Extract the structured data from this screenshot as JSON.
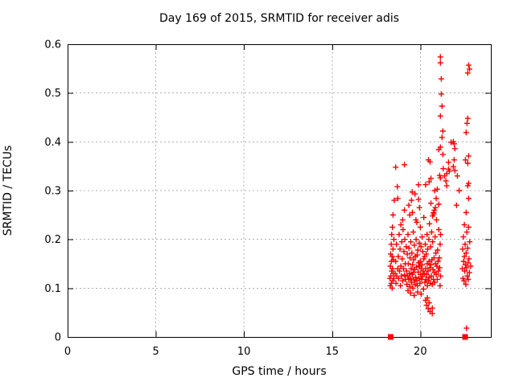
{
  "chart_data": {
    "type": "scatter",
    "title": "Day 169 of 2015, SRMTID for receiver adis",
    "xlabel": "GPS time / hours",
    "ylabel": "SRMTID / TECUs",
    "xlim": [
      0,
      24
    ],
    "ylim": [
      0,
      0.6
    ],
    "x_ticks": [
      0,
      5,
      10,
      15,
      20
    ],
    "x_tick_labels": [
      "0",
      "5",
      "10",
      "15",
      "20"
    ],
    "y_ticks": [
      0,
      0.1,
      0.2,
      0.3,
      0.4,
      0.5,
      0.6
    ],
    "y_tick_labels": [
      "0",
      "0.1",
      "0.2",
      "0.3",
      "0.4",
      "0.5",
      "0.6"
    ],
    "grid": true,
    "legend": "none",
    "marker": "plus",
    "marker_color": "#ff0000",
    "grid_color": "#b0b0b0",
    "axis_color": "#000000",
    "background": "#ffffff",
    "square_points": [
      [
        18.32,
        0
      ],
      [
        22.54,
        0
      ]
    ],
    "points": [
      [
        18.28,
        0.12
      ],
      [
        18.3,
        0.145
      ],
      [
        18.3,
        0.105
      ],
      [
        18.32,
        0.17
      ],
      [
        18.33,
        0.125
      ],
      [
        18.35,
        0.19
      ],
      [
        18.35,
        0.11
      ],
      [
        18.36,
        0.155
      ],
      [
        18.38,
        0.135
      ],
      [
        18.38,
        0.21
      ],
      [
        18.4,
        0.1
      ],
      [
        18.4,
        0.165
      ],
      [
        18.42,
        0.14
      ],
      [
        18.42,
        0.225
      ],
      [
        18.44,
        0.115
      ],
      [
        18.45,
        0.18
      ],
      [
        18.45,
        0.25
      ],
      [
        18.46,
        0.13
      ],
      [
        18.48,
        0.158
      ],
      [
        18.5,
        0.12
      ],
      [
        18.5,
        0.2
      ],
      [
        18.52,
        0.28
      ],
      [
        18.57,
        0.13
      ],
      [
        18.6,
        0.155
      ],
      [
        18.6,
        0.348
      ],
      [
        18.62,
        0.11
      ],
      [
        18.65,
        0.19
      ],
      [
        18.66,
        0.125
      ],
      [
        18.7,
        0.308
      ],
      [
        18.72,
        0.284
      ],
      [
        18.72,
        0.14
      ],
      [
        18.75,
        0.165
      ],
      [
        18.77,
        0.12
      ],
      [
        18.8,
        0.21
      ],
      [
        18.82,
        0.135
      ],
      [
        18.85,
        0.18
      ],
      [
        18.87,
        0.105
      ],
      [
        18.9,
        0.23
      ],
      [
        18.9,
        0.145
      ],
      [
        18.93,
        0.125
      ],
      [
        18.95,
        0.195
      ],
      [
        18.97,
        0.16
      ],
      [
        19.0,
        0.115
      ],
      [
        19.02,
        0.22
      ],
      [
        19.05,
        0.14
      ],
      [
        19.07,
        0.175
      ],
      [
        19.1,
        0.353
      ],
      [
        19.1,
        0.26
      ],
      [
        19.1,
        0.127
      ],
      [
        19.12,
        0.2
      ],
      [
        19.15,
        0.15
      ],
      [
        19.17,
        0.118
      ],
      [
        19.2,
        0.185
      ],
      [
        19.0,
        0.24
      ],
      [
        19.22,
        0.135
      ],
      [
        19.24,
        0.108
      ],
      [
        19.26,
        0.17
      ],
      [
        19.28,
        0.125
      ],
      [
        19.3,
        0.095
      ],
      [
        19.3,
        0.21
      ],
      [
        19.32,
        0.15
      ],
      [
        19.34,
        0.118
      ],
      [
        19.36,
        0.182
      ],
      [
        19.38,
        0.13
      ],
      [
        19.4,
        0.103
      ],
      [
        19.4,
        0.25
      ],
      [
        19.42,
        0.162
      ],
      [
        19.44,
        0.12
      ],
      [
        19.46,
        0.195
      ],
      [
        19.48,
        0.14
      ],
      [
        19.5,
        0.112
      ],
      [
        19.5,
        0.28
      ],
      [
        19.52,
        0.172
      ],
      [
        19.54,
        0.297
      ],
      [
        19.54,
        0.128
      ],
      [
        19.56,
        0.148
      ],
      [
        19.58,
        0.1
      ],
      [
        19.6,
        0.215
      ],
      [
        19.6,
        0.132
      ],
      [
        19.62,
        0.158
      ],
      [
        19.64,
        0.117
      ],
      [
        19.66,
        0.188
      ],
      [
        19.68,
        0.138
      ],
      [
        19.7,
        0.293
      ],
      [
        19.7,
        0.108
      ],
      [
        19.72,
        0.165
      ],
      [
        19.74,
        0.122
      ],
      [
        19.76,
        0.2
      ],
      [
        19.78,
        0.143
      ],
      [
        19.8,
        0.115
      ],
      [
        19.8,
        0.235
      ],
      [
        19.82,
        0.168
      ],
      [
        19.84,
        0.105
      ],
      [
        19.86,
        0.178
      ],
      [
        19.88,
        0.133
      ],
      [
        19.9,
        0.312
      ],
      [
        19.9,
        0.282
      ],
      [
        19.9,
        0.152
      ],
      [
        19.92,
        0.12
      ],
      [
        19.94,
        0.192
      ],
      [
        19.96,
        0.145
      ],
      [
        19.98,
        0.11
      ],
      [
        20.0,
        0.225
      ],
      [
        20.0,
        0.155
      ],
      [
        20.02,
        0.128
      ],
      [
        20.04,
        0.185
      ],
      [
        20.06,
        0.14
      ],
      [
        20.08,
        0.118
      ],
      [
        20.1,
        0.205
      ],
      [
        20.1,
        0.148
      ],
      [
        20.12,
        0.124
      ],
      [
        20.14,
        0.175
      ],
      [
        20.16,
        0.135
      ],
      [
        20.18,
        0.098
      ],
      [
        20.2,
        0.16
      ],
      [
        20.2,
        0.245
      ],
      [
        19.45,
        0.09
      ],
      [
        19.65,
        0.085
      ],
      [
        19.85,
        0.092
      ],
      [
        20.05,
        0.088
      ],
      [
        19.35,
        0.27
      ],
      [
        19.55,
        0.255
      ],
      [
        19.75,
        0.24
      ],
      [
        19.95,
        0.265
      ],
      [
        20.3,
        0.075
      ],
      [
        20.35,
        0.065
      ],
      [
        20.4,
        0.08
      ],
      [
        20.45,
        0.058
      ],
      [
        20.5,
        0.07
      ],
      [
        20.55,
        0.052
      ],
      [
        20.68,
        0.059
      ],
      [
        20.68,
        0.048
      ],
      [
        20.22,
        0.13
      ],
      [
        20.24,
        0.165
      ],
      [
        20.26,
        0.112
      ],
      [
        20.28,
        0.19
      ],
      [
        20.3,
        0.14
      ],
      [
        20.3,
        0.312
      ],
      [
        20.32,
        0.118
      ],
      [
        20.34,
        0.17
      ],
      [
        20.36,
        0.128
      ],
      [
        20.38,
        0.21
      ],
      [
        20.4,
        0.15
      ],
      [
        20.4,
        0.105
      ],
      [
        20.42,
        0.18
      ],
      [
        20.44,
        0.135
      ],
      [
        20.46,
        0.115
      ],
      [
        20.46,
        0.363
      ],
      [
        20.48,
        0.2
      ],
      [
        20.5,
        0.155
      ],
      [
        20.5,
        0.318
      ],
      [
        20.5,
        0.122
      ],
      [
        20.52,
        0.232
      ],
      [
        20.54,
        0.142
      ],
      [
        20.55,
        0.359
      ],
      [
        20.56,
        0.11
      ],
      [
        20.58,
        0.185
      ],
      [
        20.6,
        0.274
      ],
      [
        20.6,
        0.325
      ],
      [
        20.6,
        0.148
      ],
      [
        20.62,
        0.125
      ],
      [
        20.64,
        0.215
      ],
      [
        20.66,
        0.158
      ],
      [
        20.68,
        0.108
      ],
      [
        20.7,
        0.248
      ],
      [
        20.7,
        0.195
      ],
      [
        20.72,
        0.138
      ],
      [
        20.74,
        0.118
      ],
      [
        20.75,
        0.255
      ],
      [
        20.76,
        0.252
      ],
      [
        20.78,
        0.162
      ],
      [
        20.8,
        0.26
      ],
      [
        20.8,
        0.132
      ],
      [
        20.82,
        0.3
      ],
      [
        20.82,
        0.112
      ],
      [
        20.84,
        0.205
      ],
      [
        20.85,
        0.265
      ],
      [
        20.86,
        0.15
      ],
      [
        20.88,
        0.172
      ],
      [
        20.9,
        0.284
      ],
      [
        20.9,
        0.128
      ],
      [
        20.92,
        0.24
      ],
      [
        20.94,
        0.145
      ],
      [
        20.96,
        0.303
      ],
      [
        20.96,
        0.118
      ],
      [
        20.98,
        0.178
      ],
      [
        21.0,
        0.155
      ],
      [
        21.02,
        0.135
      ],
      [
        21.05,
        0.272
      ],
      [
        21.05,
        0.22
      ],
      [
        21.08,
        0.162
      ],
      [
        21.1,
        0.331
      ],
      [
        21.1,
        0.142
      ],
      [
        21.12,
        0.19
      ],
      [
        21.14,
        0.326
      ],
      [
        21.15,
        0.125
      ],
      [
        21.15,
        0.21
      ],
      [
        21.12,
        0.105
      ],
      [
        21.05,
        0.384
      ],
      [
        21.14,
        0.389
      ],
      [
        21.28,
        0.374
      ],
      [
        21.3,
        0.345
      ],
      [
        21.37,
        0.33
      ],
      [
        21.5,
        0.335
      ],
      [
        21.6,
        0.358
      ],
      [
        21.6,
        0.344
      ],
      [
        21.65,
        0.34
      ],
      [
        21.74,
        0.399
      ],
      [
        21.87,
        0.349
      ],
      [
        21.87,
        0.4
      ],
      [
        21.92,
        0.396
      ],
      [
        21.92,
        0.363
      ],
      [
        21.96,
        0.341
      ],
      [
        21.96,
        0.386
      ],
      [
        21.5,
        0.31
      ],
      [
        21.45,
        0.32
      ],
      [
        21.14,
        0.574
      ],
      [
        21.14,
        0.562
      ],
      [
        21.19,
        0.529
      ],
      [
        21.19,
        0.498
      ],
      [
        21.23,
        0.473
      ],
      [
        21.14,
        0.453
      ],
      [
        21.28,
        0.422
      ],
      [
        21.23,
        0.409
      ],
      [
        22.05,
        0.27
      ],
      [
        22.1,
        0.33
      ],
      [
        22.2,
        0.3
      ],
      [
        22.74,
        0.557
      ],
      [
        22.79,
        0.549
      ],
      [
        22.69,
        0.541
      ],
      [
        22.69,
        0.448
      ],
      [
        22.65,
        0.438
      ],
      [
        22.6,
        0.419
      ],
      [
        22.56,
        0.363
      ],
      [
        22.69,
        0.356
      ],
      [
        22.74,
        0.371
      ],
      [
        22.74,
        0.315
      ],
      [
        22.69,
        0.31
      ],
      [
        22.74,
        0.284
      ],
      [
        22.38,
        0.14
      ],
      [
        22.4,
        0.18
      ],
      [
        22.42,
        0.12
      ],
      [
        22.44,
        0.205
      ],
      [
        22.46,
        0.155
      ],
      [
        22.48,
        0.115
      ],
      [
        22.5,
        0.23
      ],
      [
        22.5,
        0.165
      ],
      [
        22.52,
        0.135
      ],
      [
        22.54,
        0.19
      ],
      [
        22.56,
        0.148
      ],
      [
        22.58,
        0.108
      ],
      [
        22.6,
        0.255
      ],
      [
        22.6,
        0.172
      ],
      [
        22.62,
        0.142
      ],
      [
        22.64,
        0.215
      ],
      [
        22.66,
        0.125
      ],
      [
        22.68,
        0.182
      ],
      [
        22.7,
        0.152
      ],
      [
        22.72,
        0.118
      ],
      [
        22.74,
        0.225
      ],
      [
        22.76,
        0.16
      ],
      [
        22.78,
        0.132
      ],
      [
        22.8,
        0.195
      ],
      [
        22.85,
        0.145
      ],
      [
        22.62,
        0.018
      ]
    ]
  }
}
